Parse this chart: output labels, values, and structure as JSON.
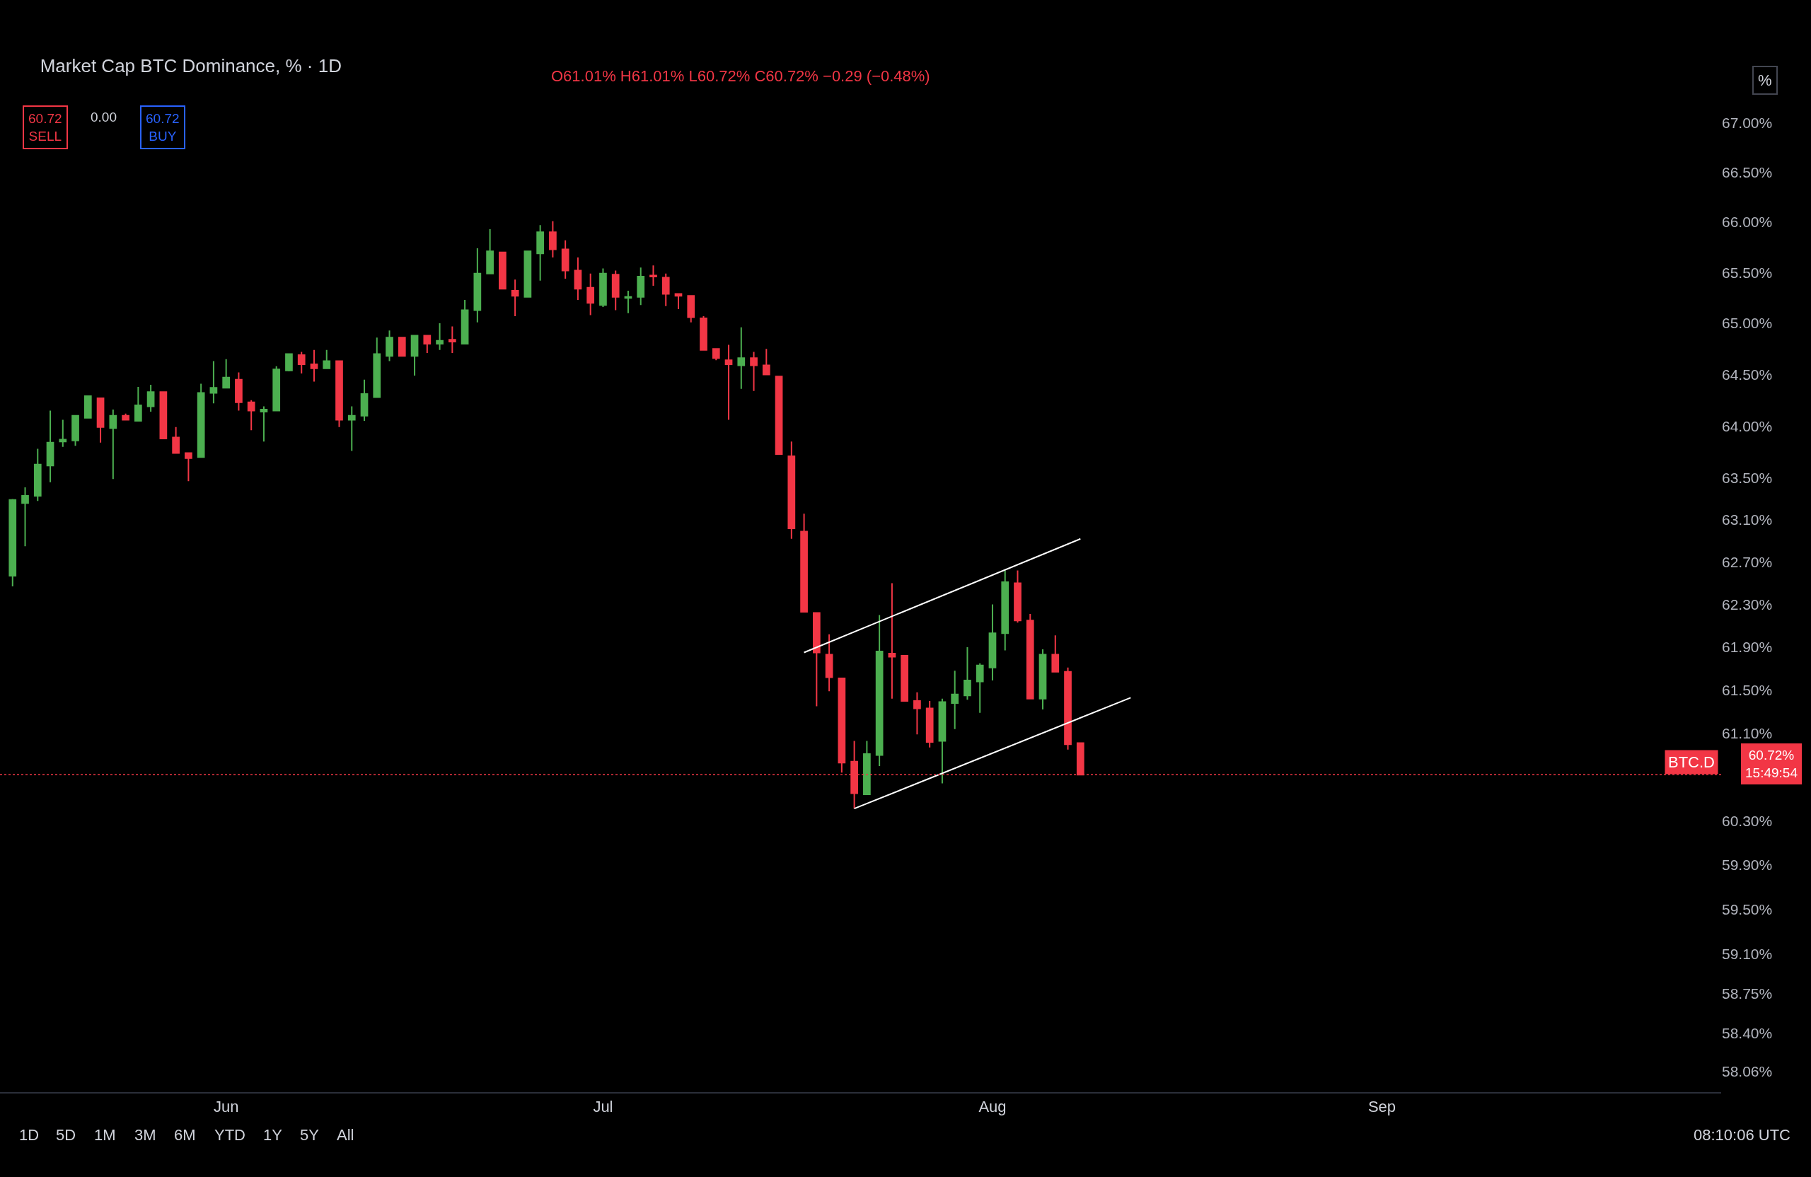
{
  "chart_data": {
    "type": "candlestick",
    "title": "Market Cap BTC Dominance, % · 1D",
    "subtitle": "O61.01% H61.01% L60.72% C60.72% −0.29 (−0.48%)",
    "x": [
      "--05-15",
      "--05-16",
      "--05-17",
      "--05-18",
      "--05-19",
      "--05-20",
      "--05-21",
      "--05-22",
      "--05-23",
      "--05-24",
      "--05-25",
      "--05-26",
      "--05-27",
      "--05-28",
      "--05-29",
      "--05-30",
      "--05-31",
      "--06-01",
      "--06-02",
      "--06-03",
      "--06-04",
      "--06-05",
      "--06-06",
      "--06-07",
      "--06-08",
      "--06-09",
      "--06-10",
      "--06-11",
      "--06-12",
      "--06-13",
      "--06-14",
      "--06-15",
      "--06-16",
      "--06-17",
      "--06-18",
      "--06-19",
      "--06-20",
      "--06-21",
      "--06-22",
      "--06-23",
      "--06-24",
      "--06-25",
      "--06-26",
      "--06-27",
      "--06-28",
      "--06-29",
      "--06-30",
      "--07-01",
      "--07-02",
      "--07-03",
      "--07-04",
      "--07-05",
      "--07-06",
      "--07-07",
      "--07-08",
      "--07-09",
      "--07-10",
      "--07-11",
      "--07-12",
      "--07-13",
      "--07-14",
      "--07-15",
      "--07-16",
      "--07-17",
      "--07-18",
      "--07-19",
      "--07-20",
      "--07-21",
      "--07-22",
      "--07-23",
      "--07-24",
      "--07-25",
      "--07-26",
      "--07-27",
      "--07-28",
      "--07-29",
      "--07-30",
      "--07-31",
      "--08-01",
      "--08-02",
      "--08-03",
      "--08-04",
      "--08-05",
      "--08-06",
      "--08-07",
      "--08-08"
    ],
    "ohlc": [
      [
        62.57,
        63.3,
        62.47,
        63.29
      ],
      [
        63.26,
        63.41,
        62.85,
        63.33
      ],
      [
        63.33,
        63.78,
        63.28,
        63.63
      ],
      [
        63.62,
        64.15,
        63.46,
        63.84
      ],
      [
        63.85,
        64.06,
        63.8,
        63.87
      ],
      [
        63.86,
        64.1,
        63.81,
        64.1
      ],
      [
        64.08,
        64.29,
        64.08,
        64.29
      ],
      [
        64.27,
        64.27,
        63.84,
        63.99
      ],
      [
        63.98,
        64.16,
        63.49,
        64.1
      ],
      [
        64.1,
        64.12,
        64.06,
        64.06
      ],
      [
        64.05,
        64.38,
        64.05,
        64.2
      ],
      [
        64.19,
        64.4,
        64.14,
        64.33
      ],
      [
        64.33,
        64.33,
        63.88,
        63.88
      ],
      [
        63.89,
        63.99,
        63.74,
        63.74
      ],
      [
        63.74,
        63.74,
        63.47,
        63.69
      ],
      [
        63.7,
        64.41,
        63.7,
        64.32
      ],
      [
        64.32,
        64.63,
        64.22,
        64.37
      ],
      [
        64.37,
        64.65,
        64.37,
        64.47
      ],
      [
        64.45,
        64.52,
        64.15,
        64.23
      ],
      [
        64.23,
        64.25,
        63.96,
        64.15
      ],
      [
        64.14,
        64.19,
        63.85,
        64.16
      ],
      [
        64.15,
        64.58,
        64.15,
        64.55
      ],
      [
        64.54,
        64.7,
        64.53,
        64.7
      ],
      [
        64.69,
        64.72,
        64.51,
        64.6
      ],
      [
        64.6,
        64.74,
        64.43,
        64.56
      ],
      [
        64.56,
        64.74,
        64.56,
        64.63
      ],
      [
        64.63,
        64.63,
        63.99,
        64.06
      ],
      [
        64.06,
        64.19,
        63.76,
        64.1
      ],
      [
        64.1,
        64.45,
        64.05,
        64.31
      ],
      [
        64.28,
        64.86,
        64.28,
        64.7
      ],
      [
        64.68,
        64.93,
        64.63,
        64.86
      ],
      [
        64.86,
        64.86,
        64.68,
        64.68
      ],
      [
        64.68,
        64.88,
        64.49,
        64.88
      ],
      [
        64.88,
        64.88,
        64.71,
        64.8
      ],
      [
        64.8,
        65.0,
        64.74,
        64.83
      ],
      [
        64.84,
        64.97,
        64.71,
        64.82
      ],
      [
        64.8,
        65.23,
        64.8,
        65.13
      ],
      [
        65.13,
        65.74,
        65.01,
        65.49
      ],
      [
        65.49,
        65.93,
        65.49,
        65.71
      ],
      [
        65.7,
        65.7,
        65.34,
        65.34
      ],
      [
        65.32,
        65.43,
        65.07,
        65.27
      ],
      [
        65.26,
        65.71,
        65.26,
        65.71
      ],
      [
        65.69,
        65.97,
        65.42,
        65.9
      ],
      [
        65.9,
        66.01,
        65.65,
        65.73
      ],
      [
        65.73,
        65.82,
        65.44,
        65.52
      ],
      [
        65.52,
        65.65,
        65.23,
        65.34
      ],
      [
        65.35,
        65.49,
        65.08,
        65.2
      ],
      [
        65.18,
        65.54,
        65.16,
        65.49
      ],
      [
        65.48,
        65.52,
        65.13,
        65.26
      ],
      [
        65.25,
        65.32,
        65.1,
        65.26
      ],
      [
        65.26,
        65.55,
        65.18,
        65.46
      ],
      [
        65.47,
        65.57,
        65.37,
        65.46
      ],
      [
        65.45,
        65.49,
        65.17,
        65.29
      ],
      [
        65.29,
        65.29,
        65.14,
        65.27
      ],
      [
        65.27,
        65.27,
        65.01,
        65.06
      ],
      [
        65.05,
        65.07,
        64.74,
        64.74
      ],
      [
        64.75,
        64.75,
        64.64,
        64.66
      ],
      [
        64.64,
        64.79,
        64.06,
        64.6
      ],
      [
        64.59,
        64.96,
        64.36,
        64.66
      ],
      [
        64.66,
        64.72,
        64.34,
        64.59
      ],
      [
        64.59,
        64.75,
        64.5,
        64.5
      ],
      [
        64.48,
        64.48,
        63.73,
        63.73
      ],
      [
        63.71,
        63.85,
        62.92,
        63.02
      ],
      [
        62.99,
        63.16,
        62.23,
        62.23
      ],
      [
        62.22,
        62.22,
        61.35,
        61.85
      ],
      [
        61.83,
        62.02,
        61.49,
        61.62
      ],
      [
        61.61,
        61.61,
        60.74,
        60.83
      ],
      [
        60.84,
        61.03,
        60.41,
        60.55
      ],
      [
        60.54,
        61.03,
        60.54,
        60.91
      ],
      [
        60.9,
        62.2,
        60.8,
        61.86
      ],
      [
        61.84,
        62.5,
        61.42,
        61.81
      ],
      [
        61.82,
        61.82,
        61.4,
        61.4
      ],
      [
        61.4,
        61.48,
        61.09,
        61.33
      ],
      [
        61.33,
        61.4,
        60.97,
        61.02
      ],
      [
        61.03,
        61.42,
        60.64,
        61.39
      ],
      [
        61.38,
        61.68,
        61.14,
        61.46
      ],
      [
        61.45,
        61.9,
        61.41,
        61.59
      ],
      [
        61.58,
        61.75,
        61.29,
        61.73
      ],
      [
        61.71,
        62.3,
        61.59,
        62.03
      ],
      [
        62.03,
        62.62,
        61.87,
        62.51
      ],
      [
        62.5,
        62.62,
        62.13,
        62.15
      ],
      [
        62.15,
        62.21,
        61.42,
        61.42
      ],
      [
        61.42,
        61.88,
        61.32,
        61.83
      ],
      [
        61.83,
        62.01,
        61.67,
        61.67
      ],
      [
        61.67,
        61.71,
        60.95,
        61.0
      ],
      [
        61.01,
        61.01,
        60.72,
        60.72
      ]
    ],
    "colors": [
      "#4caf50",
      "#4caf50",
      "#4caf50",
      "#4caf50",
      "#4caf50",
      "#4caf50",
      "#4caf50",
      "#f23645",
      "#4caf50",
      "#f23645",
      "#4caf50",
      "#4caf50",
      "#f23645",
      "#f23645",
      "#f23645",
      "#4caf50",
      "#4caf50",
      "#4caf50",
      "#f23645",
      "#f23645",
      "#4caf50",
      "#4caf50",
      "#4caf50",
      "#f23645",
      "#f23645",
      "#4caf50",
      "#f23645",
      "#4caf50",
      "#4caf50",
      "#4caf50",
      "#4caf50",
      "#f23645",
      "#4caf50",
      "#f23645",
      "#4caf50",
      "#f23645",
      "#4caf50",
      "#4caf50",
      "#4caf50",
      "#f23645",
      "#f23645",
      "#4caf50",
      "#4caf50",
      "#f23645",
      "#f23645",
      "#f23645",
      "#f23645",
      "#4caf50",
      "#f23645",
      "#4caf50",
      "#4caf50",
      "#f23645",
      "#f23645",
      "#f23645",
      "#f23645",
      "#f23645",
      "#f23645",
      "#f23645",
      "#4caf50",
      "#f23645",
      "#f23645",
      "#f23645",
      "#f23645",
      "#f23645",
      "#f23645",
      "#f23645",
      "#f23645",
      "#f23645",
      "#4caf50",
      "#4caf50",
      "#f23645",
      "#f23645",
      "#f23645",
      "#f23645",
      "#4caf50",
      "#4caf50",
      "#4caf50",
      "#4caf50",
      "#4caf50",
      "#4caf50",
      "#f23645",
      "#f23645",
      "#4caf50",
      "#f23645",
      "#f23645",
      "#f23645"
    ],
    "series": [
      {
        "type": "line",
        "x": [
          "--07-17",
          "--08-08"
        ],
        "values": [
          61.85,
          62.92
        ],
        "color": "#ffffff"
      },
      {
        "type": "line",
        "x": [
          "--07-21",
          "--08-12"
        ],
        "values": [
          60.41,
          61.43
        ],
        "color": "#ffffff"
      }
    ],
    "log": true,
    "xlim": [
      "--05-14",
      "--09-28"
    ],
    "xticks": [
      {
        "value": "--06-01",
        "label": "Jun"
      },
      {
        "value": "--07-01",
        "label": "Jul"
      },
      {
        "value": "--08-01",
        "label": "Aug"
      },
      {
        "value": "--09-01",
        "label": "Sep"
      }
    ],
    "ylim": [
      57.88,
      68.25
    ],
    "yticks": [
      {
        "value": 67,
        "label": "67.00%"
      },
      {
        "value": 66.5,
        "label": "66.50%"
      },
      {
        "value": 66,
        "label": "66.00%"
      },
      {
        "value": 65.5,
        "label": "65.50%"
      },
      {
        "value": 65,
        "label": "65.00%"
      },
      {
        "value": 64.5,
        "label": "64.50%"
      },
      {
        "value": 64,
        "label": "64.00%"
      },
      {
        "value": 63.5,
        "label": "63.50%"
      },
      {
        "value": 63.1,
        "label": "63.10%"
      },
      {
        "value": 62.7,
        "label": "62.70%"
      },
      {
        "value": 62.3,
        "label": "62.30%"
      },
      {
        "value": 61.9,
        "label": "61.90%"
      },
      {
        "value": 61.5,
        "label": "61.50%"
      },
      {
        "value": 61.1,
        "label": "61.10%"
      },
      {
        "value": 60.3,
        "label": "60.30%"
      },
      {
        "value": 59.9,
        "label": "59.90%"
      },
      {
        "value": 59.5,
        "label": "59.50%"
      },
      {
        "value": 59.1,
        "label": "59.10%"
      },
      {
        "value": 58.75,
        "label": "58.75%"
      },
      {
        "value": 58.4,
        "label": "58.40%"
      },
      {
        "value": 58.06,
        "label": "58.06%"
      }
    ],
    "ref_lines": [
      {
        "axis": "y",
        "value": 60.72,
        "label": "BTC.D",
        "color": "#f23645",
        "line_style": "dotted"
      }
    ],
    "annotations": [
      "60.72\nSELL",
      "0.00",
      "60.72\nBUY",
      "%",
      "60.72%\n15:49:54",
      "1D",
      "5D",
      "1M",
      "3M",
      "6M",
      "YTD",
      "1Y",
      "5Y",
      "All",
      "08:10:06 UTC"
    ]
  }
}
